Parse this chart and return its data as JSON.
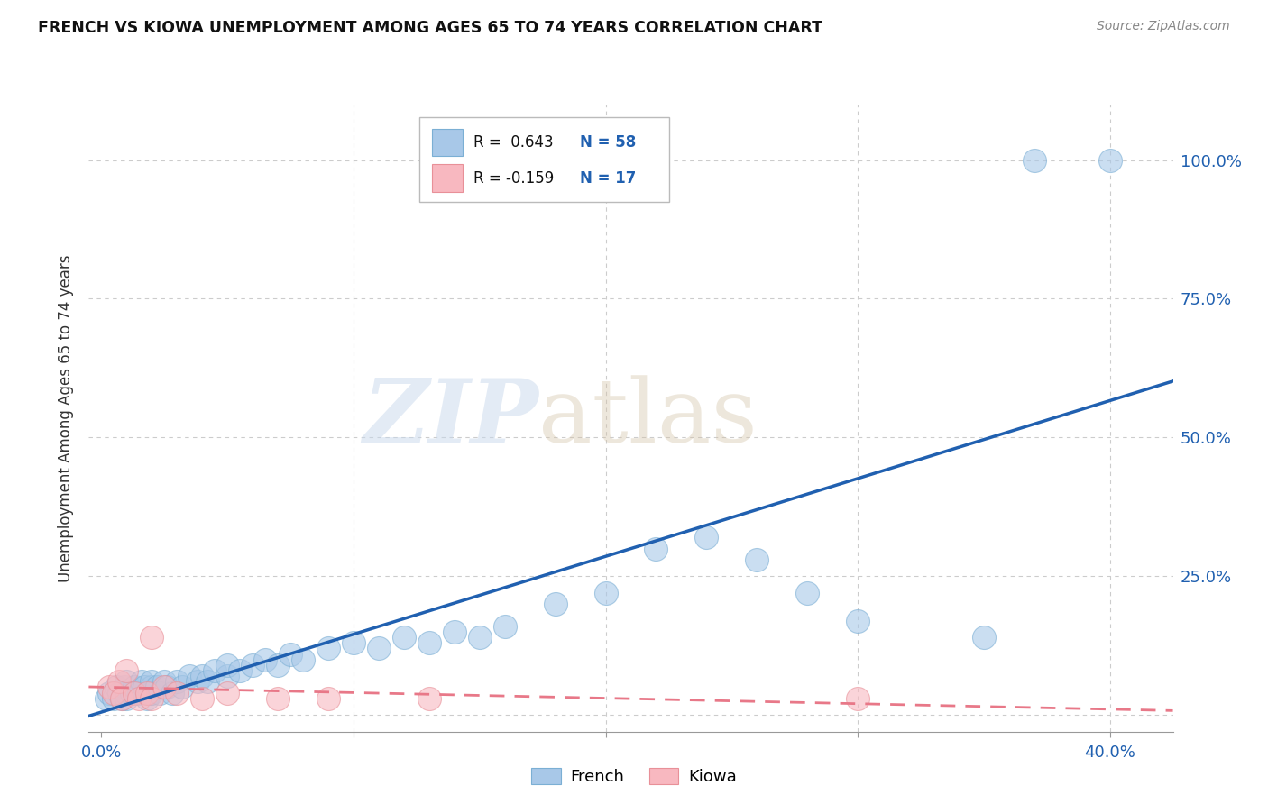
{
  "title": "FRENCH VS KIOWA UNEMPLOYMENT AMONG AGES 65 TO 74 YEARS CORRELATION CHART",
  "source": "Source: ZipAtlas.com",
  "ylabel": "Unemployment Among Ages 65 to 74 years",
  "xlim": [
    -0.005,
    0.425
  ],
  "ylim": [
    -0.03,
    1.1
  ],
  "french_color": "#a8c8e8",
  "french_edge_color": "#7bafd4",
  "kiowa_color": "#f8b8c0",
  "kiowa_edge_color": "#e89098",
  "french_line_color": "#2060b0",
  "kiowa_line_color": "#e87888",
  "legend_r_french": "R =  0.643",
  "legend_n_french": "N = 58",
  "legend_r_kiowa": "R = -0.159",
  "legend_n_kiowa": "N =  17",
  "legend_value_color": "#2060b0",
  "watermark_zip_color": "#c8d8e8",
  "watermark_atlas_color": "#d8c8b8",
  "french_x": [
    0.002,
    0.003,
    0.005,
    0.006,
    0.007,
    0.008,
    0.009,
    0.01,
    0.01,
    0.01,
    0.012,
    0.013,
    0.015,
    0.016,
    0.017,
    0.018,
    0.019,
    0.02,
    0.02,
    0.02,
    0.022,
    0.023,
    0.025,
    0.026,
    0.028,
    0.03,
    0.032,
    0.035,
    0.038,
    0.04,
    0.042,
    0.045,
    0.05,
    0.05,
    0.055,
    0.06,
    0.065,
    0.07,
    0.075,
    0.08,
    0.09,
    0.1,
    0.11,
    0.12,
    0.13,
    0.14,
    0.15,
    0.16,
    0.18,
    0.2,
    0.22,
    0.24,
    0.26,
    0.28,
    0.3,
    0.35,
    0.37,
    0.4
  ],
  "french_y": [
    0.03,
    0.04,
    0.03,
    0.05,
    0.04,
    0.03,
    0.05,
    0.04,
    0.06,
    0.03,
    0.04,
    0.05,
    0.04,
    0.06,
    0.05,
    0.03,
    0.04,
    0.05,
    0.04,
    0.06,
    0.05,
    0.04,
    0.06,
    0.05,
    0.04,
    0.06,
    0.05,
    0.07,
    0.06,
    0.07,
    0.06,
    0.08,
    0.07,
    0.09,
    0.08,
    0.09,
    0.1,
    0.09,
    0.11,
    0.1,
    0.12,
    0.13,
    0.12,
    0.14,
    0.13,
    0.15,
    0.14,
    0.16,
    0.2,
    0.22,
    0.3,
    0.32,
    0.28,
    0.22,
    0.17,
    0.14,
    1.0,
    1.0
  ],
  "kiowa_x": [
    0.003,
    0.005,
    0.007,
    0.008,
    0.01,
    0.013,
    0.015,
    0.018,
    0.02,
    0.025,
    0.03,
    0.04,
    0.05,
    0.07,
    0.09,
    0.13,
    0.3
  ],
  "kiowa_y": [
    0.05,
    0.04,
    0.06,
    0.03,
    0.08,
    0.04,
    0.03,
    0.04,
    0.03,
    0.05,
    0.04,
    0.03,
    0.04,
    0.03,
    0.03,
    0.03,
    0.03
  ],
  "kiowa_outlier_x": [
    0.02
  ],
  "kiowa_outlier_y": [
    0.14
  ],
  "x_tick_positions": [
    0.0,
    0.1,
    0.2,
    0.3,
    0.4
  ],
  "y_tick_positions": [
    0.0,
    0.25,
    0.5,
    0.75,
    1.0
  ],
  "background_color": "#ffffff",
  "grid_color": "#cccccc"
}
